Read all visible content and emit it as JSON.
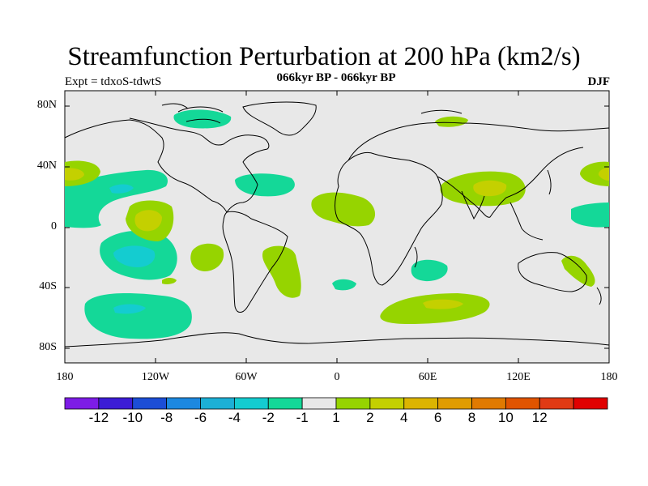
{
  "title": "Streamfunction Perturbation at 200 hPa (km2/s)",
  "subtitle_left": "Expt = tdxoS-tdwtS",
  "subtitle_center": "066kyr BP - 066kyr BP",
  "subtitle_right": "DJF",
  "lat_labels": [
    "80N",
    "40N",
    "0",
    "40S",
    "80S"
  ],
  "lon_labels": [
    "180",
    "120W",
    "60W",
    "0",
    "60E",
    "120E",
    "180"
  ],
  "colorbar": {
    "colors": [
      "#7d1ce6",
      "#3c1cd6",
      "#1c4ed6",
      "#1c88e0",
      "#1cb0d6",
      "#14ccd0",
      "#14d898",
      "#e8e8e8",
      "#96d400",
      "#c4d000",
      "#dcb400",
      "#e09c00",
      "#e07a00",
      "#e05400",
      "#e03a14",
      "#e00000"
    ],
    "labels": [
      "-12",
      "-10",
      "-8",
      "-6",
      "-4",
      "-2",
      "-1",
      "1",
      "2",
      "4",
      "6",
      "8",
      "10",
      "12"
    ]
  },
  "map": {
    "ocean_fill": "#e8e8e8",
    "contour_colors": {
      "neg1": "#14d898",
      "neg2": "#14ccd0",
      "pos1": "#96d400",
      "pos2": "#c4d000"
    }
  }
}
